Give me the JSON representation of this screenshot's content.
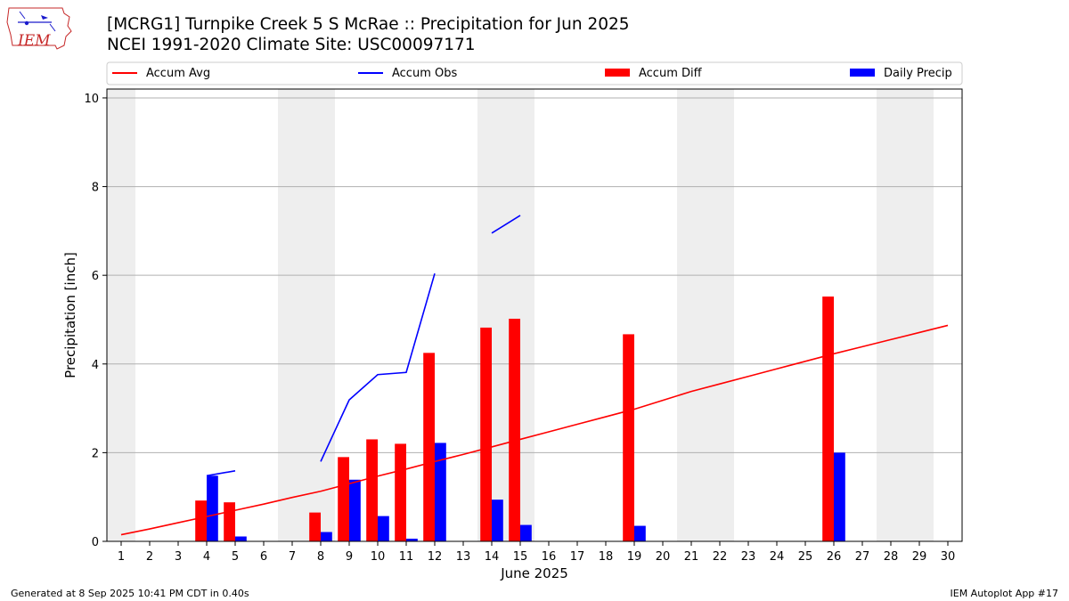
{
  "title_line1": "[MCRG1] Turnpike Creek 5 S McRae :: Precipitation for Jun 2025",
  "title_line2": "NCEI 1991-2020 Climate Site: USC00097171",
  "logo_text": "IEM",
  "footer_left": "Generated at 8 Sep 2025 10:41 PM CDT in 0.40s",
  "footer_right": "IEM Autoplot App #17",
  "colors": {
    "accum_avg": "#ff0000",
    "accum_obs": "#0000ff",
    "accum_diff": "#ff0000",
    "daily_precip": "#0000ff",
    "weekend_shade": "#eeeeee",
    "grid": "#b0b0b0",
    "logo": "#c62828"
  },
  "chart_data": {
    "type": "bar",
    "xlabel": "June 2025",
    "ylabel": "Precipitation [inch]",
    "xlim": [
      0.5,
      30.5
    ],
    "ylim": [
      0,
      10.2
    ],
    "x": [
      1,
      2,
      3,
      4,
      5,
      6,
      7,
      8,
      9,
      10,
      11,
      12,
      13,
      14,
      15,
      16,
      17,
      18,
      19,
      20,
      21,
      22,
      23,
      24,
      25,
      26,
      27,
      28,
      29,
      30
    ],
    "x_tick_labels": [
      "1",
      "2",
      "3",
      "4",
      "5",
      "6",
      "7",
      "8",
      "9",
      "10",
      "11",
      "12",
      "13",
      "14",
      "15",
      "16",
      "17",
      "18",
      "19",
      "20",
      "21",
      "22",
      "23",
      "24",
      "25",
      "26",
      "27",
      "28",
      "29",
      "30"
    ],
    "y_ticks": [
      0,
      2,
      4,
      6,
      8,
      10
    ],
    "y_tick_labels": [
      "0",
      "2",
      "4",
      "6",
      "8",
      "10"
    ],
    "grid": "horizontal",
    "legend_position": "top, above plot",
    "shaded_days": [
      [
        0.5,
        1.5
      ],
      [
        6.5,
        8.5
      ],
      [
        13.5,
        15.5
      ],
      [
        20.5,
        22.5
      ],
      [
        27.5,
        29.5
      ]
    ],
    "series": [
      {
        "name": "Accum Avg",
        "kind": "line",
        "values": [
          0.15,
          0.28,
          0.42,
          0.56,
          0.7,
          0.84,
          0.99,
          1.13,
          1.3,
          1.47,
          1.63,
          1.8,
          1.96,
          2.13,
          2.3,
          2.47,
          2.64,
          2.81,
          2.98,
          3.18,
          3.38,
          3.55,
          3.72,
          3.89,
          4.06,
          4.23,
          4.39,
          4.55,
          4.71,
          4.87
        ]
      },
      {
        "name": "Accum Obs",
        "kind": "line",
        "values": [
          null,
          null,
          null,
          1.48,
          1.59,
          null,
          null,
          1.8,
          3.19,
          3.76,
          3.81,
          6.04,
          null,
          6.95,
          7.35,
          null,
          null,
          null,
          null,
          null,
          null,
          null,
          null,
          null,
          null,
          null,
          null,
          null,
          null,
          null
        ]
      },
      {
        "name": "Accum Diff",
        "kind": "bar",
        "values": [
          0,
          0,
          0,
          0.92,
          0.88,
          0,
          0,
          0.65,
          1.9,
          2.3,
          2.2,
          4.25,
          0,
          4.82,
          5.02,
          0,
          0,
          0,
          4.67,
          0,
          0,
          0,
          0,
          0,
          0,
          5.52,
          0,
          0,
          0,
          0
        ]
      },
      {
        "name": "Daily Precip",
        "kind": "bar",
        "values": [
          0,
          0,
          0,
          1.48,
          0.11,
          0,
          0,
          0.21,
          1.39,
          0.57,
          0.06,
          2.22,
          0,
          0.94,
          0.37,
          0,
          0,
          0,
          0.35,
          0,
          0,
          0,
          0,
          0,
          0,
          2.0,
          0,
          0,
          0,
          0
        ]
      }
    ]
  }
}
